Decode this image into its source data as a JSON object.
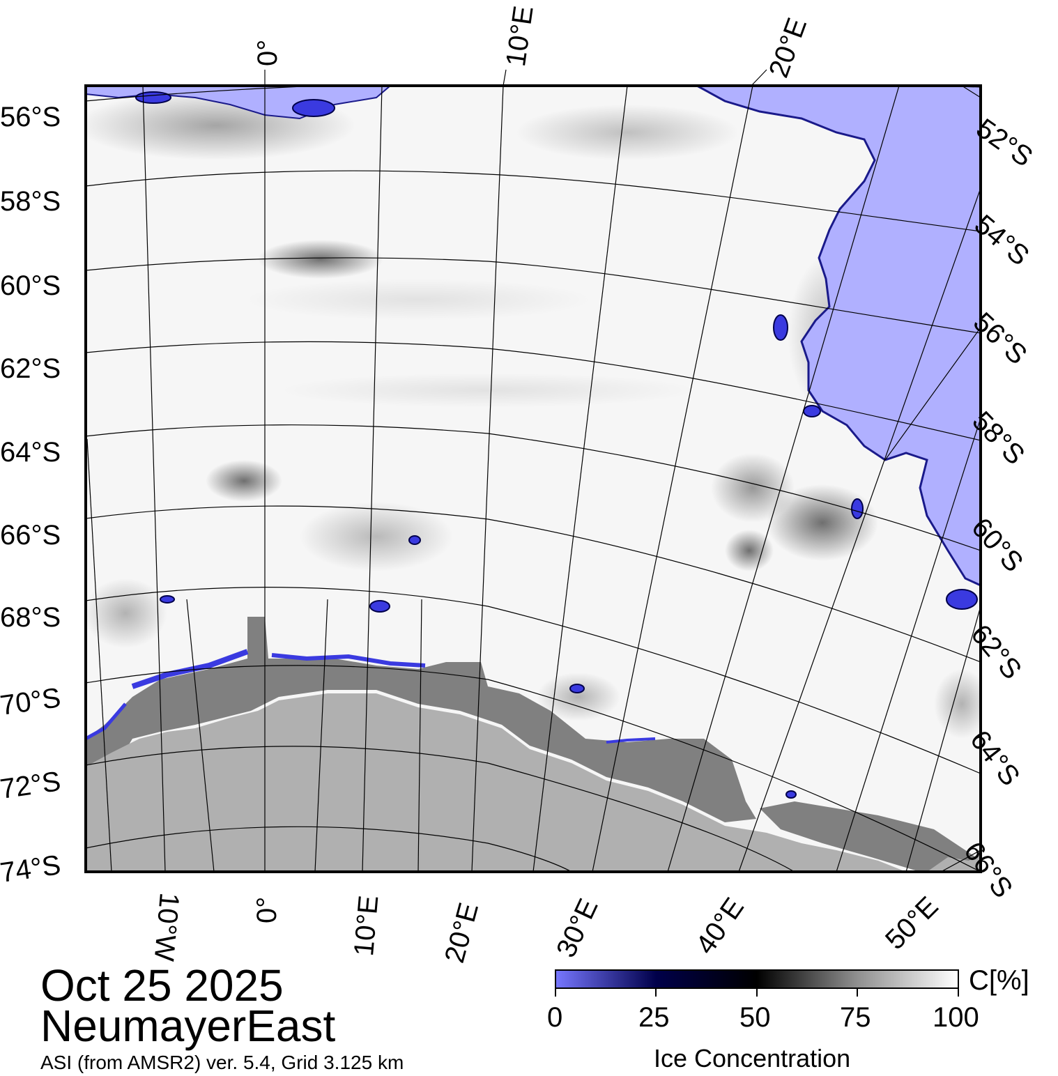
{
  "map": {
    "date": "Oct 25 2025",
    "region": "NeumayerEast",
    "product": "ASI (from AMSR2) ver. 5.4,  Grid 3.125 km",
    "colors": {
      "open_water": "#b0b0ff",
      "land": "#b0b0b0",
      "ice_shelf": "#808080",
      "ice_high": "#ffffff",
      "ice_mid": "#000000",
      "ice_low": "#00004a",
      "ice_zero": "#7777ff"
    },
    "left_lat_labels": [
      "56°S",
      "58°S",
      "60°S",
      "62°S",
      "64°S",
      "66°S",
      "68°S",
      "70°S",
      "72°S",
      "74°S"
    ],
    "right_lat_labels": [
      "52°S",
      "54°S",
      "56°S",
      "58°S",
      "60°S",
      "62°S",
      "64°S",
      "66°S"
    ],
    "top_lon_labels": [
      "0°",
      "10°E",
      "20°E"
    ],
    "bottom_lon_labels": [
      "10°W",
      "0°",
      "10°E",
      "20°E",
      "30°E",
      "40°E",
      "50°E"
    ]
  },
  "colorbar": {
    "unit": "C[%]",
    "title": "Ice Concentration",
    "ticks": [
      "0",
      "25",
      "50",
      "75",
      "100"
    ],
    "range": [
      0,
      100
    ]
  }
}
